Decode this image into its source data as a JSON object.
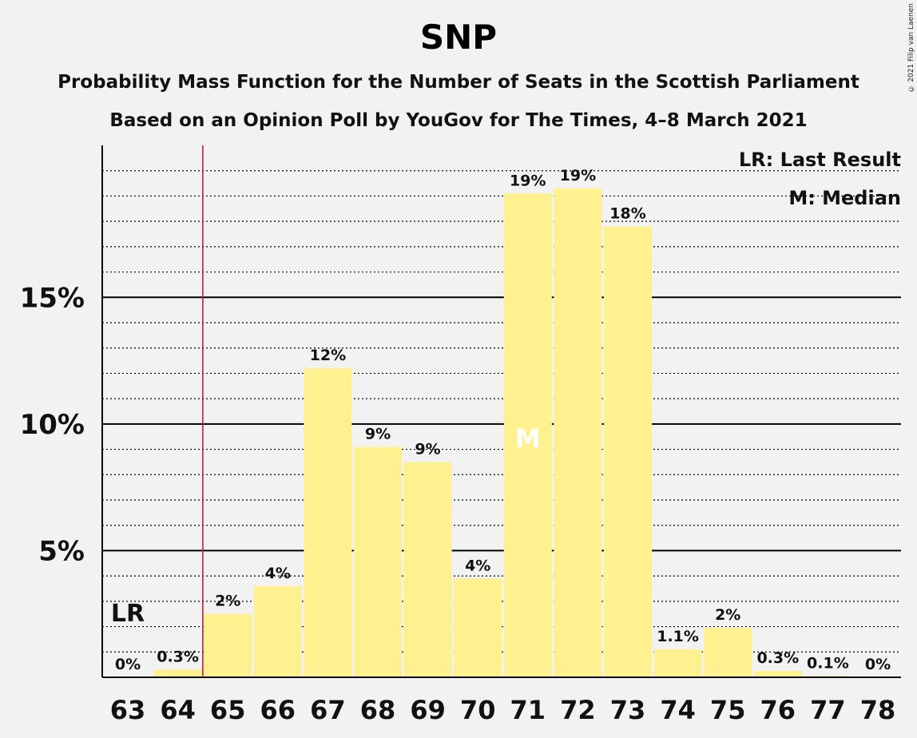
{
  "chart_data": {
    "type": "bar",
    "title": "SNP",
    "subtitle": "Probability Mass Function for the Number of Seats in the Scottish Parliament",
    "subtitle2": "Based on an Opinion Poll by YouGov for The Times, 4–8 March 2021",
    "copyright": "© 2021 Filip van Laenen",
    "categories": [
      "63",
      "64",
      "65",
      "66",
      "67",
      "68",
      "69",
      "70",
      "71",
      "72",
      "73",
      "74",
      "75",
      "76",
      "77",
      "78"
    ],
    "values": [
      0,
      0.3,
      2.5,
      3.6,
      12.2,
      9.1,
      8.5,
      3.9,
      19.1,
      19.3,
      17.8,
      1.1,
      1.95,
      0.25,
      0.05,
      0
    ],
    "data_labels": [
      "0%",
      "0.3%",
      "2%",
      "4%",
      "12%",
      "9%",
      "9%",
      "4%",
      "19%",
      "19%",
      "18%",
      "1.1%",
      "2%",
      "0.3%",
      "0.1%",
      "0%"
    ],
    "ylim": [
      0,
      21
    ],
    "yticks": [
      5,
      10,
      15
    ],
    "ytick_labels": [
      "5%",
      "10%",
      "15%"
    ],
    "last_result": "64.5",
    "last_result_marker": "LR",
    "median": "71",
    "median_marker": "M",
    "legend": {
      "lr": "LR: Last Result",
      "m": "M: Median",
      "position": "top-right"
    },
    "colors": {
      "bar": "#fff18f",
      "lr_line": "#c8102e",
      "grid": "#000000",
      "background": "#f2f2f2"
    }
  }
}
